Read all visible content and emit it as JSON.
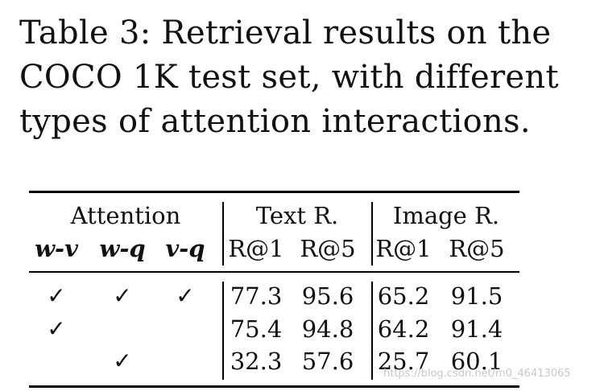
{
  "caption": {
    "line1": "Table 3: Retrieval results on the",
    "line2": "COCO 1K test set, with different",
    "line3": "types of attention interactions."
  },
  "table": {
    "group_headers": [
      "Attention",
      "Text R.",
      "Image R."
    ],
    "sub_headers": [
      "w-v",
      "w-q",
      "v-q",
      "R@1",
      "R@5",
      "R@1",
      "R@5"
    ],
    "rows": [
      {
        "wv": "✓",
        "wq": "✓",
        "vq": "✓",
        "text_r1": "77.3",
        "text_r5": "95.6",
        "image_r1": "65.2",
        "image_r5": "91.5"
      },
      {
        "wv": "✓",
        "wq": "",
        "vq": "",
        "text_r1": "75.4",
        "text_r5": "94.8",
        "image_r1": "64.2",
        "image_r5": "91.4"
      },
      {
        "wv": "",
        "wq": "✓",
        "vq": "",
        "text_r1": "32.3",
        "text_r5": "57.6",
        "image_r1": "25.7",
        "image_r5": "60.1"
      }
    ]
  },
  "watermark": "https://blog.csdn.net/m0_46413065"
}
